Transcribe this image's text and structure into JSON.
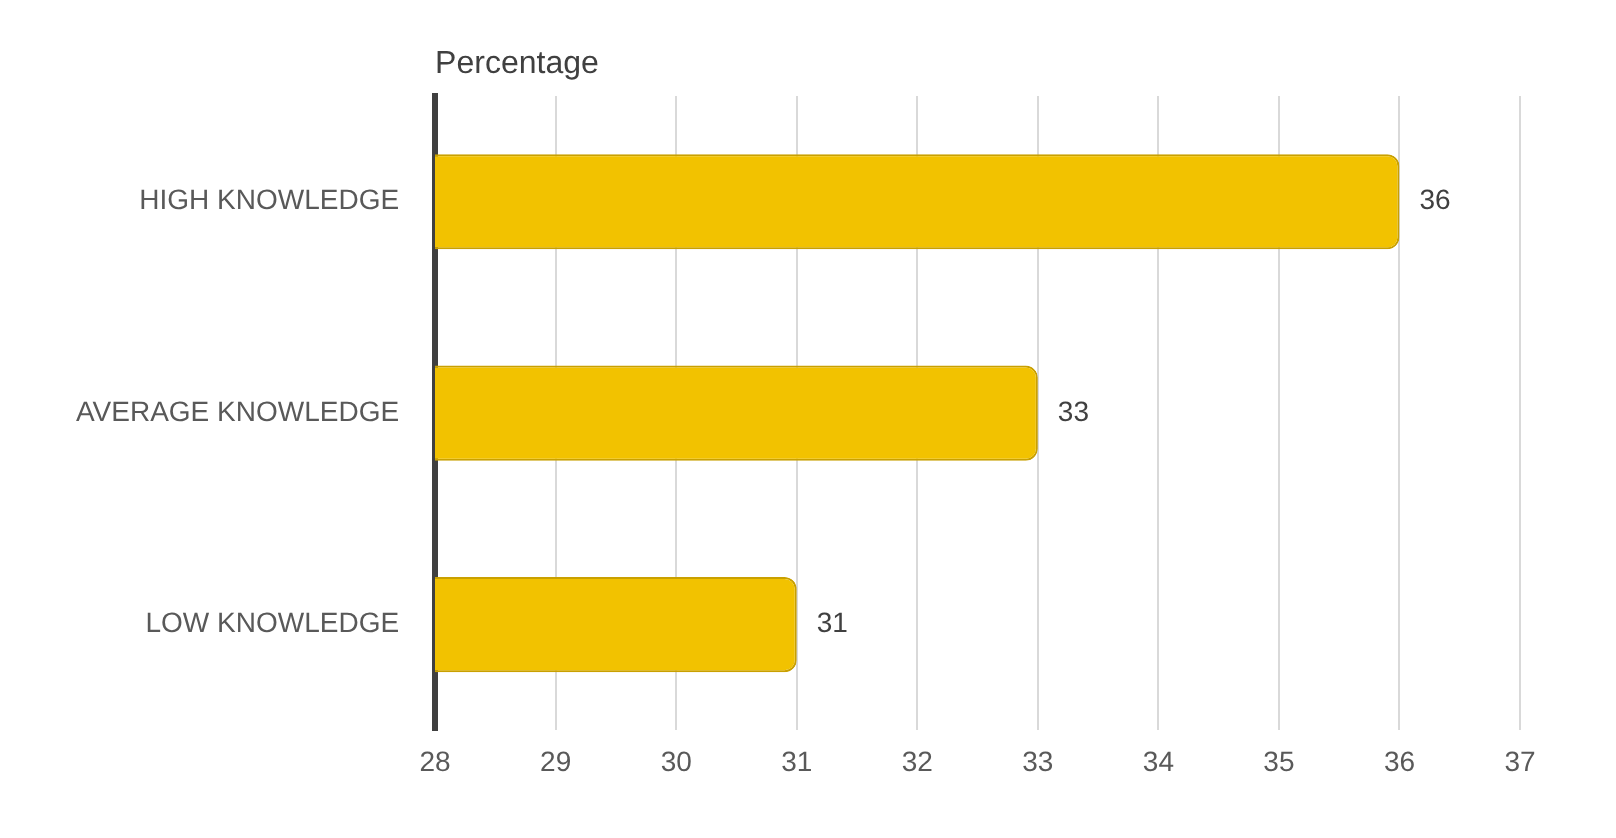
{
  "chart_data": {
    "type": "bar",
    "orientation": "horizontal",
    "title": "Percentage",
    "categories": [
      "HIGH KNOWLEDGE",
      "AVERAGE KNOWLEDGE",
      "LOW KNOWLEDGE"
    ],
    "values": [
      36,
      33,
      31
    ],
    "color": "#f2c200",
    "xlim": [
      28,
      37
    ],
    "xticks": [
      28,
      29,
      30,
      31,
      32,
      33,
      34,
      35,
      36,
      37
    ],
    "grid": "x",
    "data_labels": true,
    "legend": false
  }
}
